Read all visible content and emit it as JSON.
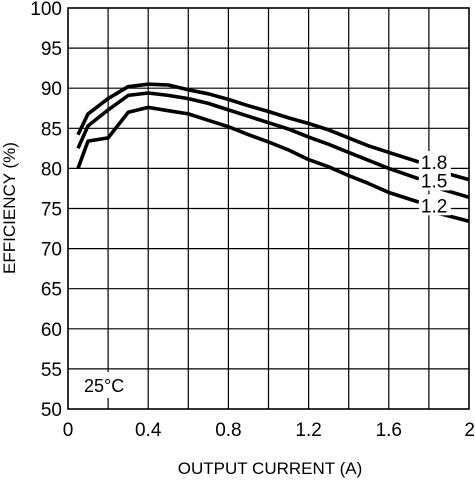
{
  "chart_data": {
    "type": "line",
    "title": "",
    "xlabel": "OUTPUT CURRENT (A)",
    "ylabel": "EFFICIENCY (%)",
    "xlim": [
      0,
      2
    ],
    "ylim": [
      50,
      100
    ],
    "grid": true,
    "x_ticks": [
      "0",
      "0.4",
      "0.8",
      "1.2",
      "1.6",
      "2"
    ],
    "x_tick_values": [
      0,
      0.4,
      0.8,
      1.2,
      1.6,
      2
    ],
    "y_ticks": [
      "50",
      "55",
      "60",
      "65",
      "70",
      "75",
      "80",
      "85",
      "90",
      "95",
      "100"
    ],
    "y_tick_values": [
      50,
      55,
      60,
      65,
      70,
      75,
      80,
      85,
      90,
      95,
      100
    ],
    "annotation": "25°C",
    "series": [
      {
        "name": "1.8",
        "x": [
          0.05,
          0.1,
          0.2,
          0.3,
          0.4,
          0.5,
          0.6,
          0.7,
          0.8,
          0.9,
          1.0,
          1.1,
          1.2,
          1.3,
          1.4,
          1.5,
          1.6,
          1.75
        ],
        "y": [
          84.2,
          86.8,
          88.7,
          90.2,
          90.5,
          90.4,
          89.8,
          89.3,
          88.6,
          87.8,
          87.1,
          86.3,
          85.6,
          84.8,
          83.8,
          82.8,
          82.0,
          80.8
        ]
      },
      {
        "name": "1.5",
        "x": [
          0.05,
          0.1,
          0.2,
          0.3,
          0.4,
          0.5,
          0.6,
          0.7,
          0.8,
          0.9,
          1.0,
          1.1,
          1.2,
          1.3,
          1.4,
          1.5,
          1.6,
          1.75
        ],
        "y": [
          82.5,
          85.3,
          87.3,
          89.1,
          89.4,
          89.1,
          88.7,
          88.1,
          87.3,
          86.5,
          85.7,
          84.9,
          83.9,
          83.0,
          82.0,
          81.0,
          80.0,
          78.7
        ]
      },
      {
        "name": "1.2",
        "x": [
          0.05,
          0.1,
          0.2,
          0.3,
          0.4,
          0.5,
          0.6,
          0.7,
          0.8,
          0.9,
          1.0,
          1.1,
          1.2,
          1.3,
          1.4,
          1.5,
          1.6,
          1.75
        ],
        "y": [
          80.0,
          83.4,
          83.8,
          87.0,
          87.6,
          87.2,
          86.8,
          86.0,
          85.2,
          84.2,
          83.3,
          82.3,
          81.1,
          80.2,
          79.1,
          78.1,
          77.0,
          75.8
        ]
      }
    ],
    "series_tails": [
      {
        "name": "1.8",
        "x": [
          1.77,
          2.0
        ],
        "y": [
          80.2,
          78.6
        ]
      },
      {
        "name": "1.5",
        "x": [
          1.77,
          2.0
        ],
        "y": [
          78.1,
          76.4
        ]
      },
      {
        "name": "1.2",
        "x": [
          1.77,
          2.0
        ],
        "y": [
          74.9,
          73.4
        ]
      }
    ],
    "series_label_positions": [
      {
        "name": "1.8",
        "x": 1.76,
        "y": 80.8
      },
      {
        "name": "1.5",
        "x": 1.76,
        "y": 78.5
      },
      {
        "name": "1.2",
        "x": 1.76,
        "y": 75.4
      }
    ]
  }
}
